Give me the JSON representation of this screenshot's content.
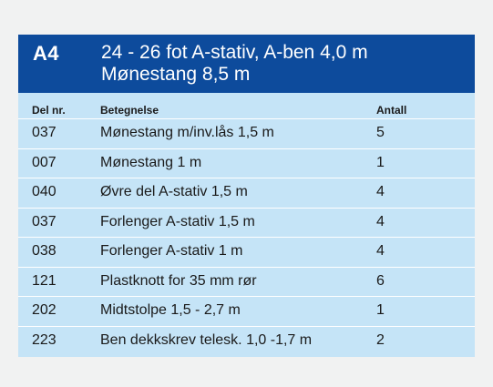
{
  "header": {
    "code": "A4",
    "title_line1": "24 - 26 fot A-stativ, A-ben 4,0 m",
    "title_line2": "Mønestang 8,5 m"
  },
  "columns": {
    "del_nr": "Del nr.",
    "betegnelse": "Betegnelse",
    "antall": "Antall"
  },
  "rows": [
    {
      "del_nr": "037",
      "betegnelse": "Mønestang m/inv.lås 1,5 m",
      "antall": "5"
    },
    {
      "del_nr": "007",
      "betegnelse": "Mønestang 1 m",
      "antall": "1"
    },
    {
      "del_nr": "040",
      "betegnelse": "Øvre del A-stativ 1,5 m",
      "antall": "4"
    },
    {
      "del_nr": "037",
      "betegnelse": "Forlenger A-stativ 1,5 m",
      "antall": "4"
    },
    {
      "del_nr": "038",
      "betegnelse": "Forlenger A-stativ 1 m",
      "antall": "4"
    },
    {
      "del_nr": "121",
      "betegnelse": "Plastknott for 35 mm rør",
      "antall": "6"
    },
    {
      "del_nr": "202",
      "betegnelse": "Midtstolpe 1,5 - 2,7 m",
      "antall": "1"
    },
    {
      "del_nr": "223",
      "betegnelse": "Ben dekkskrev telesk. 1,0 -1,7 m",
      "antall": "2"
    }
  ],
  "colors": {
    "header_bg": "#0d4b9c",
    "table_bg": "#c5e4f7",
    "page_bg": "#f1f2f2"
  }
}
